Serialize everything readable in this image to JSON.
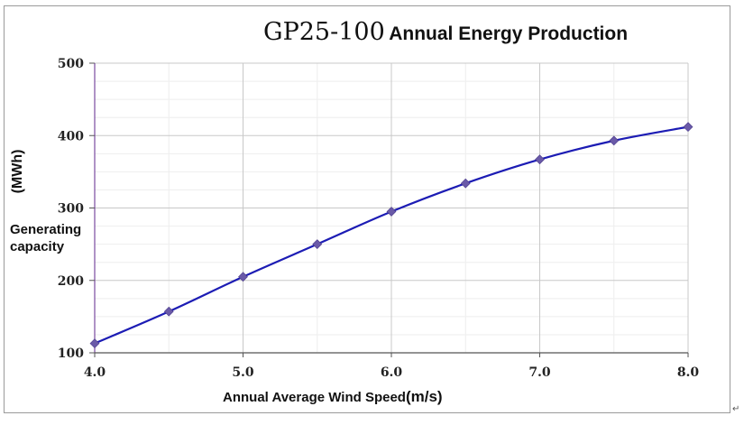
{
  "chart_data": {
    "type": "line",
    "title_main": "GP25-100",
    "title_rest": "Annual Energy Production",
    "xlabel": "Annual Average Wind Speed",
    "xlabel_unit": "(m/s)",
    "ylabel": "Generating capacity",
    "ylabel_unit": "(MWh)",
    "x": [
      4.0,
      4.5,
      5.0,
      5.5,
      6.0,
      6.5,
      7.0,
      7.5,
      8.0
    ],
    "series": [
      {
        "values": [
          113,
          157,
          205,
          250,
          295,
          334,
          367,
          393,
          412
        ]
      }
    ],
    "xlim": [
      4.0,
      8.0
    ],
    "ylim": [
      100,
      500
    ],
    "x_ticks": [
      4.0,
      5.0,
      6.0,
      7.0,
      8.0
    ],
    "x_tick_labels": [
      "4.0",
      "5.0",
      "6.0",
      "7.0",
      "8.0"
    ],
    "y_ticks": [
      100,
      200,
      300,
      400,
      500
    ],
    "y_tick_labels": [
      "100",
      "200",
      "300",
      "400",
      "500"
    ],
    "grid": true,
    "line_color": "#1c1cb4",
    "marker_color": "#6a5aa8",
    "marker": "diamond"
  }
}
